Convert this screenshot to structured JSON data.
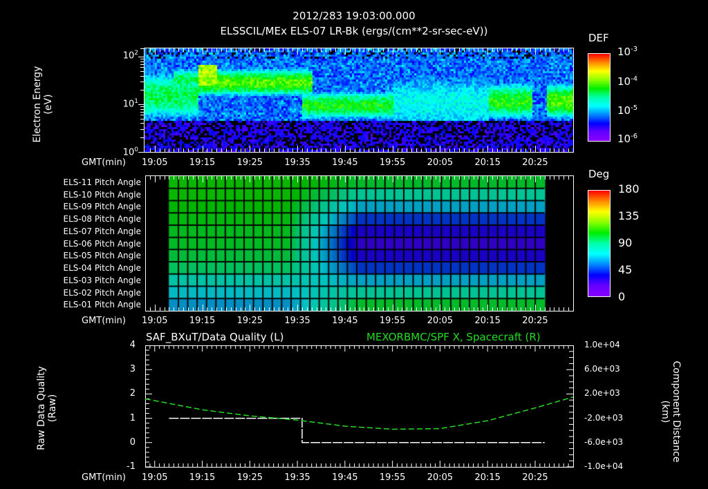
{
  "header": {
    "timestamp": "2012/283 19:03:00.000",
    "subtitle": "ELSSCIL/MEx ELS-07 LR-Bk  (ergs/(cm**2-sr-sec-eV))"
  },
  "time_axis": {
    "label": "GMT(min)",
    "ticks": [
      "19:05",
      "19:15",
      "19:25",
      "19:35",
      "19:45",
      "19:55",
      "20:05",
      "20:15",
      "20:25"
    ]
  },
  "chart_data": [
    {
      "type": "heatmap",
      "title": "ELSSCIL/MEx ELS-07 LR-Bk  (ergs/(cm**2-sr-sec-eV))",
      "ylabel": "Electron Energy (eV)",
      "xlabel": "GMT(min)",
      "yscale": "log",
      "ylim": [
        1,
        150
      ],
      "y_ticks": [
        "10^0",
        "10^1",
        "10^2"
      ],
      "x_ticks": [
        "19:05",
        "19:15",
        "19:25",
        "19:35",
        "19:45",
        "19:55",
        "20:05",
        "20:15",
        "20:25"
      ],
      "xlim": [
        "19:03",
        "20:33"
      ],
      "colorbar": {
        "label": "DEF",
        "scale": "log",
        "range": [
          1e-06,
          0.001
        ],
        "ticks": [
          "10^-3",
          "10^-4",
          "10^-5",
          "10^-6"
        ]
      },
      "features": [
        {
          "t_start": "19:06",
          "t_end": "19:14",
          "energy_band_eV": [
            5,
            50
          ],
          "level": "1e-4.5"
        },
        {
          "t_start": "19:14",
          "t_end": "19:38",
          "energy_band_eV": [
            15,
            60
          ],
          "level": "1e-4",
          "note": "yellow-green peak near 19:15, ~30-60 eV"
        },
        {
          "t_start": "19:36",
          "t_end": "19:55",
          "energy_band_eV": [
            5,
            20
          ],
          "level": "1e-4.3"
        },
        {
          "t_start": "19:55",
          "t_end": "20:15",
          "energy_band_eV": [
            3,
            40
          ],
          "level": "1e-5"
        },
        {
          "t_start": "20:15",
          "t_end": "20:24",
          "energy_band_eV": [
            5,
            30
          ],
          "level": "1e-4.3"
        },
        {
          "t_start": "20:27",
          "t_end": "20:33",
          "energy_band_eV": [
            5,
            30
          ],
          "level": "1e-4"
        }
      ]
    },
    {
      "type": "heatmap",
      "title": "Pitch Angle",
      "xlabel": "GMT(min)",
      "rows": [
        "ELS-11 Pitch Angle",
        "ELS-10 Pitch Angle",
        "ELS-09 Pitch Angle",
        "ELS-08 Pitch Angle",
        "ELS-07 Pitch Angle",
        "ELS-06 Pitch Angle",
        "ELS-05 Pitch Angle",
        "ELS-04 Pitch Angle",
        "ELS-03 Pitch Angle",
        "ELS-02 Pitch Angle",
        "ELS-01 Pitch Angle"
      ],
      "x_ticks": [
        "19:05",
        "19:15",
        "19:25",
        "19:35",
        "19:45",
        "19:55",
        "20:05",
        "20:15",
        "20:25"
      ],
      "data_time_range": [
        "19:08",
        "20:27"
      ],
      "colorbar": {
        "label": "Deg",
        "range": [
          0,
          180
        ],
        "ticks": [
          "180",
          "135",
          "90",
          "45",
          "0"
        ]
      },
      "before_19_35_deg": [
        110,
        110,
        108,
        106,
        104,
        103,
        100,
        95,
        80,
        70,
        62
      ],
      "after_19_45_deg": [
        102,
        85,
        65,
        45,
        30,
        25,
        30,
        45,
        65,
        85,
        102
      ]
    },
    {
      "type": "line",
      "title_left": "SAF_BXuT/Data Quality (L)",
      "title_right": "MEXORBMC/SPF X, Spacecraft (R)",
      "ylabel_left": "Raw Data Quality (Raw)",
      "ylabel_right": "Component Distance (km)",
      "ylim_left": [
        -1,
        4
      ],
      "y_ticks_left": [
        "4",
        "3",
        "2",
        "1",
        "0",
        "-1"
      ],
      "ylim_right": [
        -10000,
        10000
      ],
      "y_ticks_right": [
        "1.0e+04",
        "6.0e+03",
        "2.0e+03",
        "-2.0e+03",
        "-6.0e+03",
        "-1.0e+04"
      ],
      "x_ticks": [
        "19:05",
        "19:15",
        "19:25",
        "19:35",
        "19:45",
        "19:55",
        "20:05",
        "20:15",
        "20:25"
      ],
      "series": [
        {
          "name": "Data Quality",
          "axis": "left",
          "color": "#ffffff",
          "style": "dashed",
          "points": [
            [
              "19:08",
              1
            ],
            [
              "19:36",
              1
            ],
            [
              "19:36",
              0
            ],
            [
              "20:27",
              0
            ]
          ]
        },
        {
          "name": "SPF X, Spacecraft",
          "axis": "right",
          "color": "#22dd22",
          "style": "dashed",
          "points": [
            [
              "19:03",
              1200
            ],
            [
              "19:15",
              -600
            ],
            [
              "19:25",
              -1600
            ],
            [
              "19:35",
              -2300
            ],
            [
              "19:45",
              -3300
            ],
            [
              "19:55",
              -3800
            ],
            [
              "20:05",
              -3700
            ],
            [
              "20:15",
              -2400
            ],
            [
              "20:25",
              -300
            ],
            [
              "20:33",
              1500
            ]
          ]
        }
      ]
    }
  ],
  "panel1": {
    "ylabel_line1": "Electron Energy",
    "ylabel_line2": "(eV)",
    "y_ticks": [
      {
        "base": "10",
        "exp": "2"
      },
      {
        "base": "10",
        "exp": "1"
      },
      {
        "base": "10",
        "exp": "0"
      }
    ],
    "colorbar_label": "DEF",
    "colorbar_ticks": [
      {
        "base": "10",
        "exp": "-3"
      },
      {
        "base": "10",
        "exp": "-4"
      },
      {
        "base": "10",
        "exp": "-5"
      },
      {
        "base": "10",
        "exp": "-6"
      }
    ]
  },
  "panel2": {
    "rows": [
      "ELS-11 Pitch Angle",
      "ELS-10 Pitch Angle",
      "ELS-09 Pitch Angle",
      "ELS-08 Pitch Angle",
      "ELS-07 Pitch Angle",
      "ELS-06 Pitch Angle",
      "ELS-05 Pitch Angle",
      "ELS-04 Pitch Angle",
      "ELS-03 Pitch Angle",
      "ELS-02 Pitch Angle",
      "ELS-01 Pitch Angle"
    ],
    "colorbar_label": "Deg",
    "colorbar_ticks": [
      "180",
      "135",
      "90",
      "45",
      "0"
    ]
  },
  "panel3": {
    "title_left": "SAF_BXuT/Data Quality (L)",
    "title_right": "MEXORBMC/SPF X, Spacecraft (R)",
    "ylabel_left_line1": "Raw Data Quality",
    "ylabel_left_line2": "(Raw)",
    "ylabel_right_line1": "Component Distance",
    "ylabel_right_line2": "(km)",
    "y_ticks_left": [
      "4",
      "3",
      "2",
      "1",
      "0",
      "-1"
    ],
    "y_ticks_right": [
      "1.0e+04",
      "6.0e+03",
      "2.0e+03",
      "-2.0e+03",
      "-6.0e+03",
      "-1.0e+04"
    ]
  },
  "colors": {
    "background": "#000000",
    "axes": "#ffffff",
    "right_series": "#22dd22"
  }
}
